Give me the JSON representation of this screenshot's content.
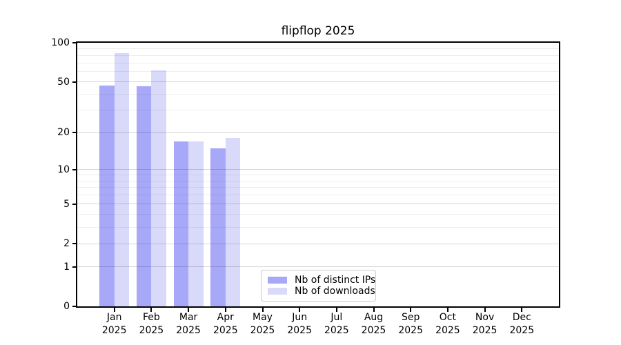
{
  "figure": {
    "background": "#ffffff"
  },
  "chart_data": {
    "type": "bar",
    "title": "flipflop 2025",
    "categories": [
      "Jan 2025",
      "Feb 2025",
      "Mar 2025",
      "Apr 2025",
      "May 2025",
      "Jun 2025",
      "Jul 2025",
      "Aug 2025",
      "Sep 2025",
      "Oct 2025",
      "Nov 2025",
      "Dec 2025"
    ],
    "series": [
      {
        "name": "Nb of distinct IPs",
        "color": "#a8a8f8",
        "values": [
          47,
          46,
          17,
          15,
          0,
          0,
          0,
          0,
          0,
          0,
          0,
          0
        ]
      },
      {
        "name": "Nb of downloads",
        "color": "#d9d9fa",
        "values": [
          83,
          61,
          17,
          18,
          0,
          0,
          0,
          0,
          0,
          0,
          0,
          0
        ]
      }
    ],
    "xlabel": "",
    "ylabel": "",
    "yscale": "log1p",
    "ylim": [
      0,
      100
    ],
    "yticks_major": [
      100,
      50,
      20,
      10,
      5,
      2,
      1,
      0
    ],
    "yticks_minor": [
      90,
      80,
      70,
      60,
      40,
      30,
      9,
      8,
      7,
      6,
      4,
      3
    ],
    "grid": "both",
    "legend_position": "lower-center"
  }
}
